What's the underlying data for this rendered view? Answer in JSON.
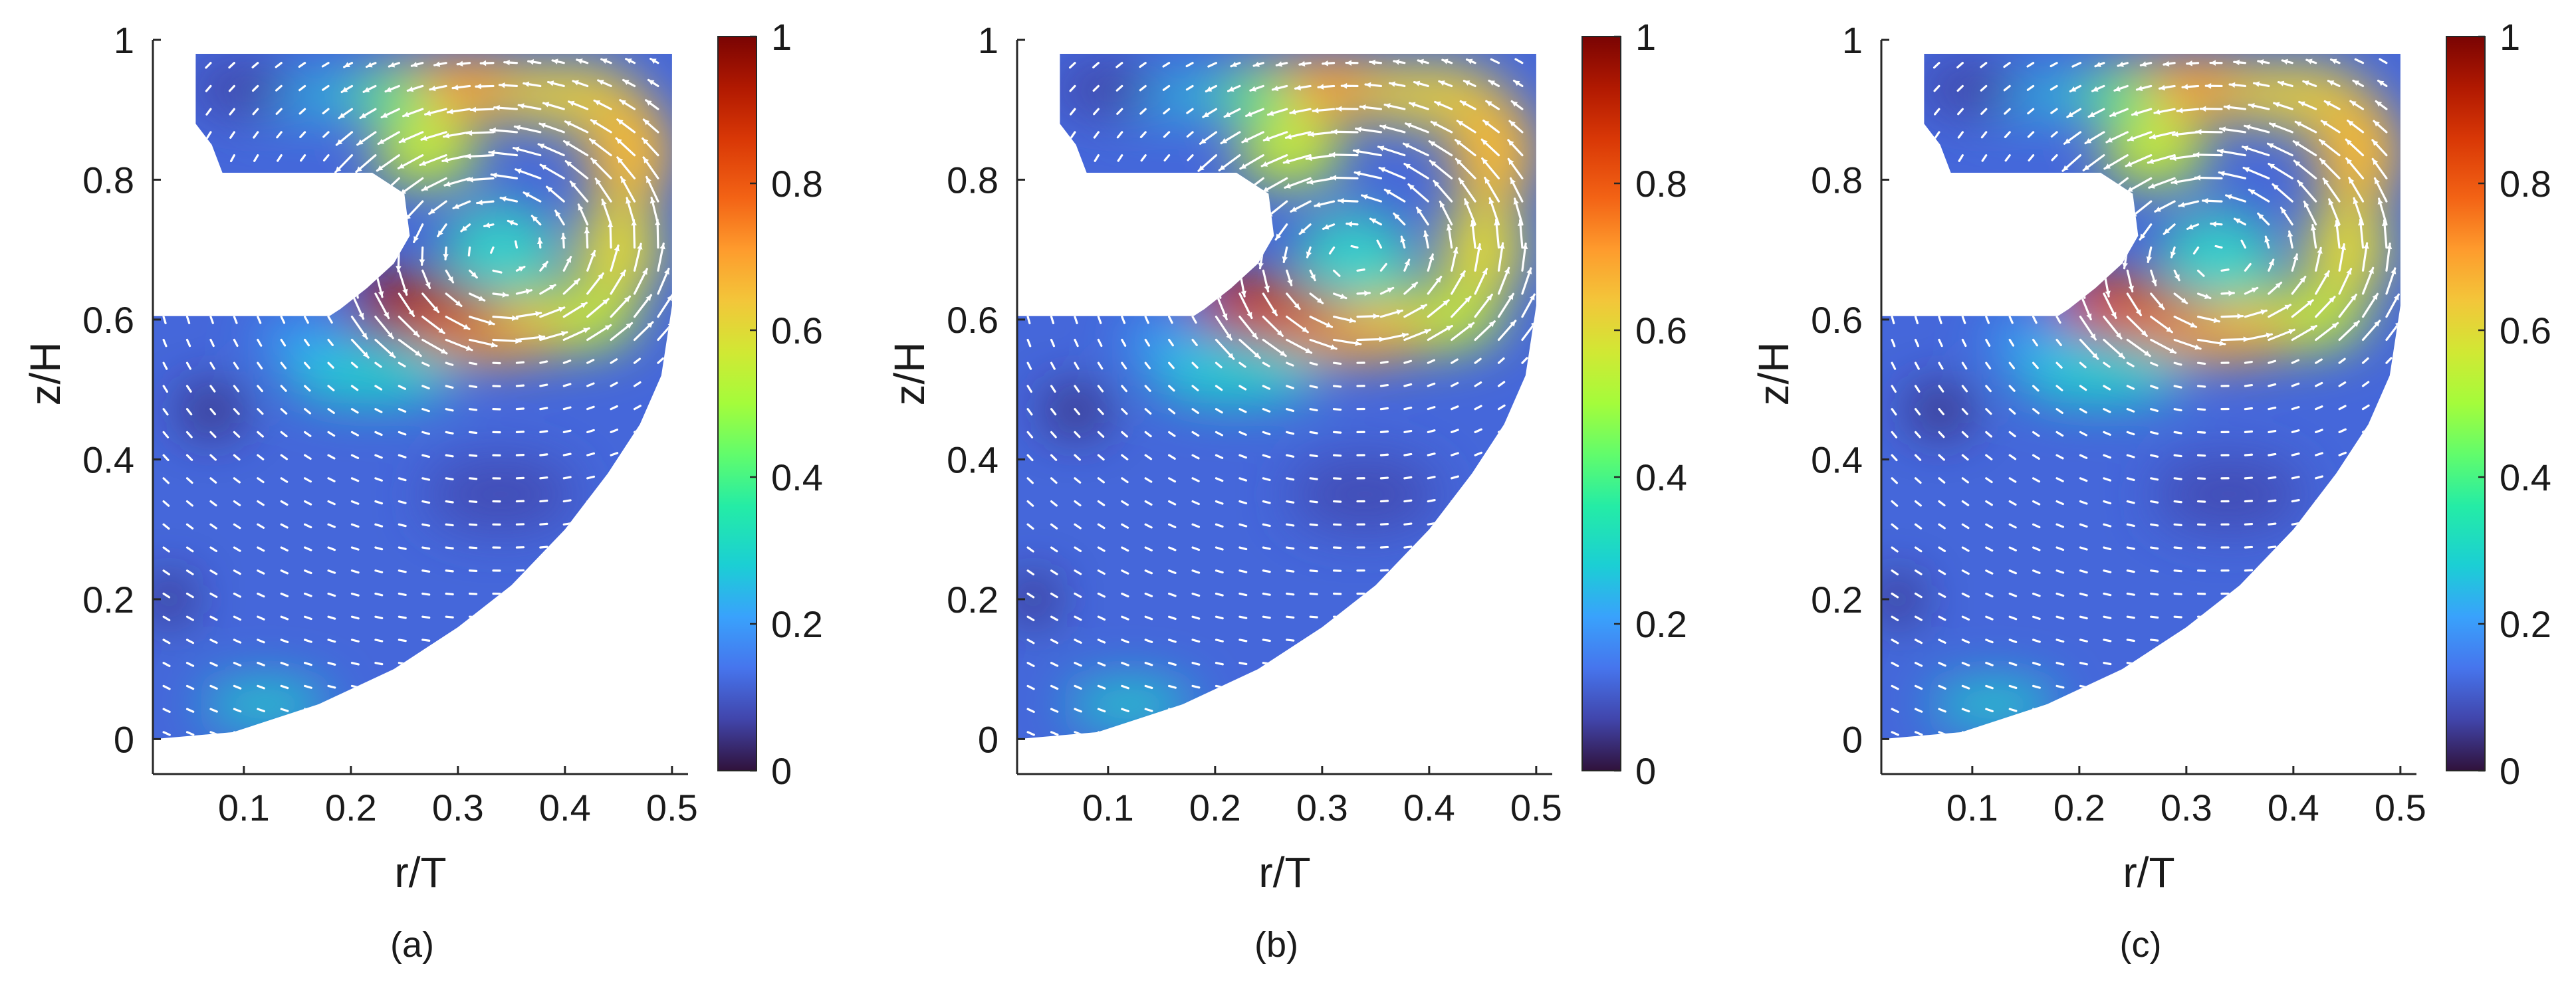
{
  "chart_data": [
    {
      "type": "heatmap",
      "panel": "(a)",
      "caption": "(a)",
      "xlabel": "r/T",
      "ylabel": "z/H",
      "xlim": [
        0.015,
        0.515
      ],
      "ylim": [
        -0.05,
        1.0
      ],
      "xticks": [
        0.1,
        0.2,
        0.3,
        0.4,
        0.5
      ],
      "yticks": [
        0,
        0.2,
        0.4,
        0.6,
        0.8,
        1
      ],
      "colorbar": {
        "colormap": "turbo",
        "range": [
          0,
          1
        ],
        "ticks": [
          0,
          0.2,
          0.4,
          0.6,
          0.8,
          1
        ]
      },
      "vortex_center": [
        0.34,
        0.7
      ],
      "jet_peak": [
        0.25,
        0.62
      ],
      "jet_peak_value": 1.0,
      "vectors": "white arrows, recirculating flow around the vortex"
    },
    {
      "type": "heatmap",
      "panel": "(b)",
      "caption": "(b)",
      "xlabel": "r/T",
      "ylabel": "z/H",
      "xlim": [
        0.015,
        0.515
      ],
      "ylim": [
        -0.05,
        1.0
      ],
      "xticks": [
        0.1,
        0.2,
        0.3,
        0.4,
        0.5
      ],
      "yticks": [
        0,
        0.2,
        0.4,
        0.6,
        0.8,
        1
      ],
      "colorbar": {
        "colormap": "turbo",
        "range": [
          0,
          1
        ],
        "ticks": [
          0,
          0.2,
          0.4,
          0.6,
          0.8,
          1
        ]
      },
      "vortex_center": [
        0.33,
        0.69
      ],
      "jet_peak": [
        0.23,
        0.62
      ],
      "jet_peak_value": 0.95,
      "vectors": "white arrows, recirculating flow around the vortex"
    },
    {
      "type": "heatmap",
      "panel": "(c)",
      "caption": "(c)",
      "xlabel": "r/T",
      "ylabel": "z/H",
      "xlim": [
        0.015,
        0.515
      ],
      "ylim": [
        -0.05,
        1.0
      ],
      "xticks": [
        0.1,
        0.2,
        0.3,
        0.4,
        0.5
      ],
      "yticks": [
        0,
        0.2,
        0.4,
        0.6,
        0.8,
        1
      ],
      "colorbar": {
        "colormap": "turbo",
        "range": [
          0,
          1
        ],
        "ticks": [
          0,
          0.2,
          0.4,
          0.6,
          0.8,
          1
        ]
      },
      "vortex_center": [
        0.33,
        0.69
      ],
      "jet_peak": [
        0.23,
        0.62
      ],
      "jet_peak_value": 0.9,
      "vectors": "white arrows, recirculating flow around the vortex"
    }
  ]
}
